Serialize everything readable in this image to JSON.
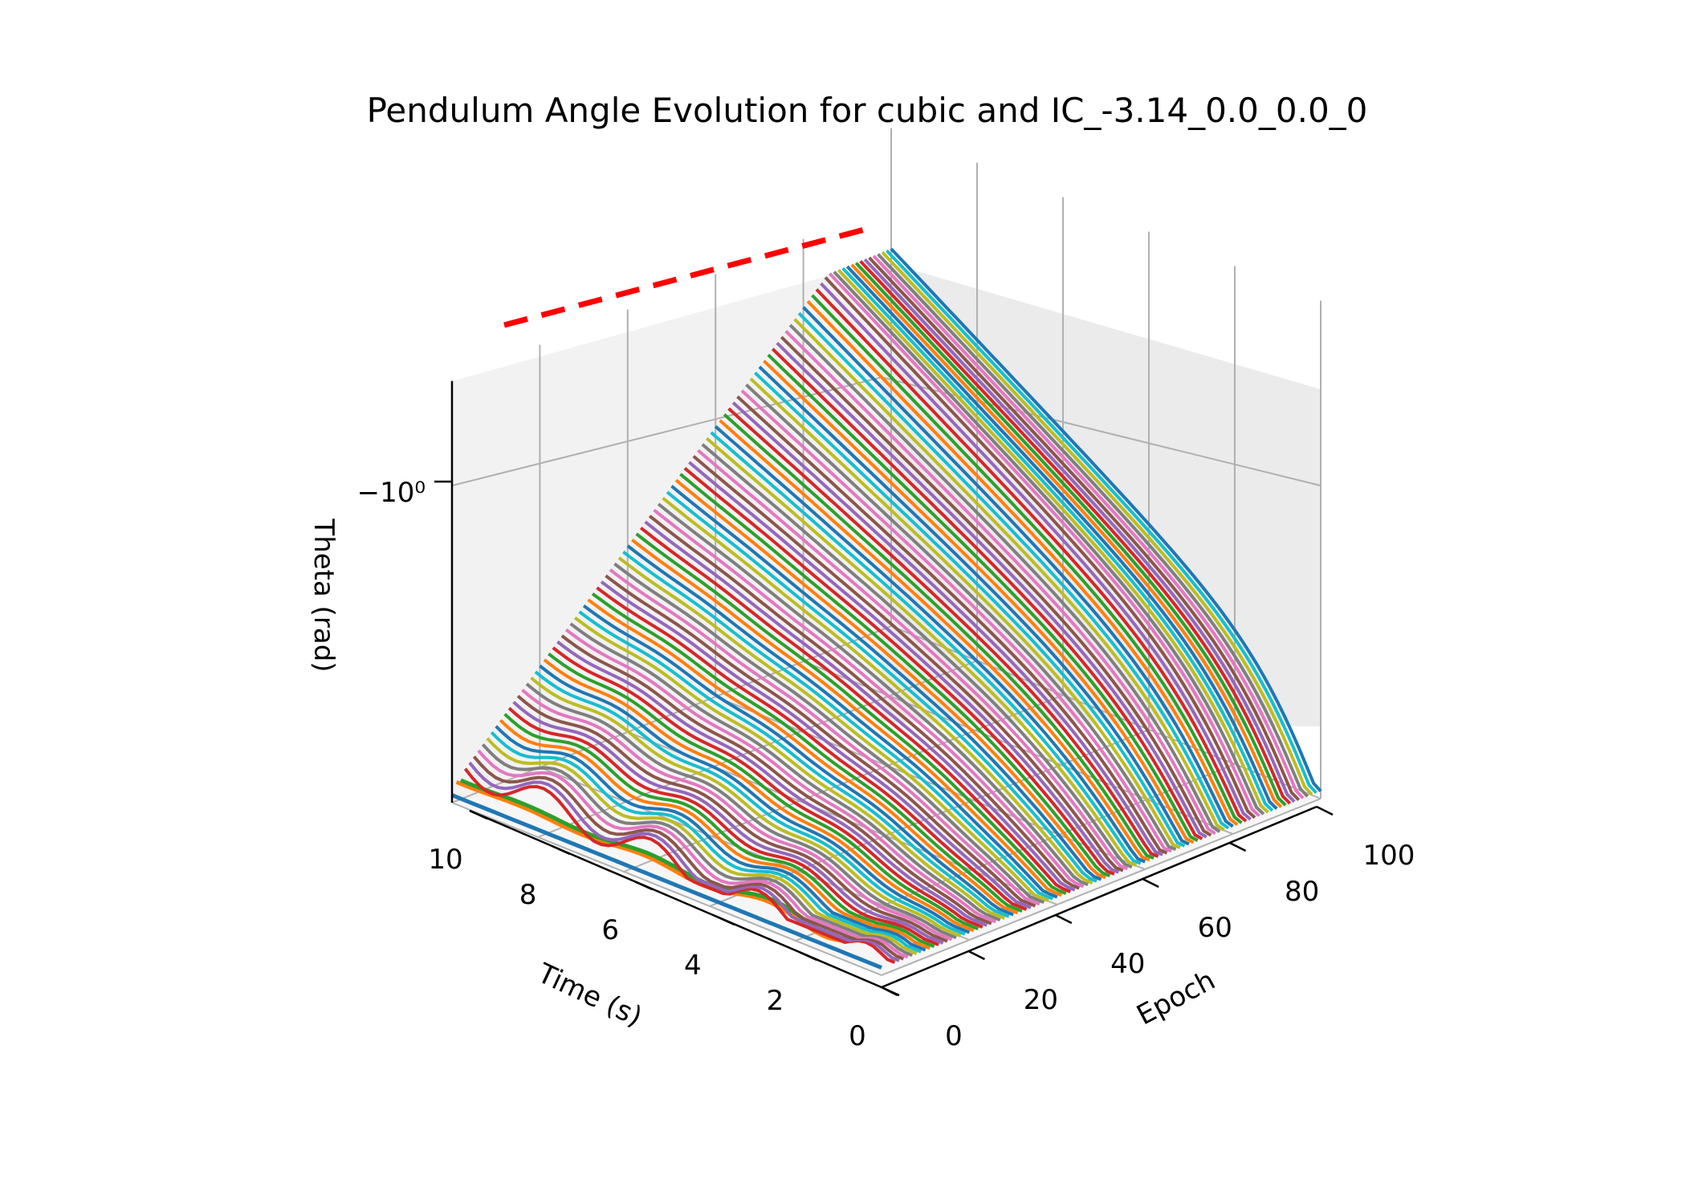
{
  "chart_data": {
    "type": "line",
    "projection": "3d",
    "title": "Pendulum Angle Evolution for cubic and IC_-3.14_0.0_0.0_0",
    "xlabel": "Time (s)",
    "ylabel": "Epoch",
    "zlabel": "Theta (rad)",
    "zscale": "symlog",
    "x_ticks": [
      "0",
      "2",
      "4",
      "6",
      "8",
      "10"
    ],
    "y_ticks": [
      "0",
      "20",
      "40",
      "60",
      "80",
      "100"
    ],
    "z_ticks": [
      "−10⁰"
    ],
    "xlim": [
      0,
      10
    ],
    "ylim": [
      0,
      100
    ],
    "grid": true,
    "series_count": 101,
    "reference_line": {
      "style": "dashed",
      "color": "#ff0000"
    },
    "colors": [
      "#1f77b4",
      "#ff7f0e",
      "#2ca02c",
      "#d62728",
      "#9467bd",
      "#8c564b",
      "#e377c2",
      "#7f7f7f",
      "#bcbd22",
      "#17becf"
    ]
  }
}
